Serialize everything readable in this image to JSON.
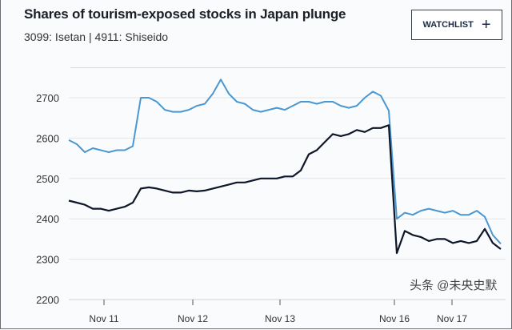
{
  "header": {
    "title": "Shares of tourism-exposed stocks in Japan plunge",
    "subtitle": "3099: Isetan | 4911: Shiseido",
    "watchlist_label": "WATCHLIST",
    "watchlist_icon": "plus-icon"
  },
  "watermark": "头条 @未央史默",
  "chart_data": {
    "type": "line",
    "title": "Shares of tourism-exposed stocks in Japan plunge",
    "subtitle": "3099: Isetan | 4911: Shiseido",
    "ylim": [
      2200,
      2760
    ],
    "yticks": [
      2200,
      2300,
      2400,
      2500,
      2600,
      2700
    ],
    "xticks": [
      {
        "label": "Nov 11",
        "at": 4.4
      },
      {
        "label": "Nov 12",
        "at": 15.5
      },
      {
        "label": "Nov 13",
        "at": 26.4
      },
      {
        "label": "Nov 16",
        "at": 40.7
      },
      {
        "label": "Nov 17",
        "at": 47.9
      }
    ],
    "grid": true,
    "series": [
      {
        "color": "#4a97d2",
        "values": [
          2595,
          2585,
          2565,
          2575,
          2570,
          2565,
          2570,
          2570,
          2580,
          2700,
          2700,
          2690,
          2670,
          2665,
          2665,
          2670,
          2680,
          2685,
          2710,
          2745,
          2710,
          2690,
          2685,
          2670,
          2665,
          2670,
          2675,
          2670,
          2680,
          2690,
          2690,
          2685,
          2690,
          2690,
          2680,
          2675,
          2680,
          2700,
          2715,
          2705,
          2668,
          2400,
          2415,
          2410,
          2420,
          2425,
          2420,
          2415,
          2420,
          2410,
          2410,
          2420,
          2405,
          2360,
          2338
        ]
      },
      {
        "color": "#0e1628",
        "values": [
          2445,
          2440,
          2435,
          2425,
          2425,
          2420,
          2425,
          2430,
          2440,
          2475,
          2478,
          2475,
          2470,
          2465,
          2465,
          2470,
          2468,
          2470,
          2475,
          2480,
          2485,
          2490,
          2490,
          2495,
          2500,
          2500,
          2500,
          2505,
          2505,
          2520,
          2560,
          2570,
          2590,
          2610,
          2605,
          2610,
          2620,
          2615,
          2625,
          2625,
          2632,
          2315,
          2370,
          2360,
          2355,
          2345,
          2350,
          2350,
          2340,
          2345,
          2340,
          2345,
          2375,
          2340,
          2325
        ]
      }
    ]
  }
}
